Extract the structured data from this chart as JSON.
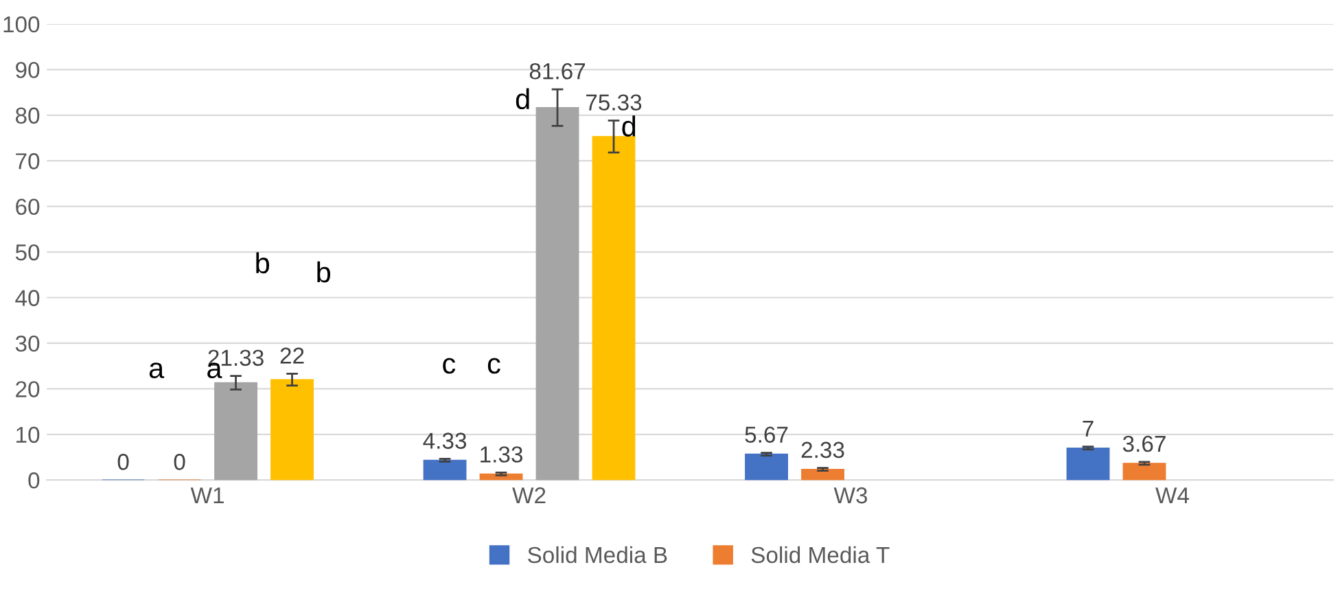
{
  "chart_data": {
    "type": "bar",
    "categories": [
      "W1",
      "W2",
      "W3",
      "W4"
    ],
    "series": [
      {
        "name": "Solid Media B",
        "color": "#4472c4",
        "values": [
          0,
          4.33,
          5.67,
          7
        ],
        "errors": [
          null,
          0.3,
          0.3,
          0.3
        ]
      },
      {
        "name": "Solid Media T",
        "color": "#ed7d31",
        "values": [
          0,
          1.33,
          2.33,
          3.67
        ],
        "errors": [
          null,
          0.3,
          0.3,
          0.3
        ]
      },
      {
        "color": "#a5a5a5",
        "values": [
          21.33,
          81.67,
          null,
          null
        ],
        "errors": [
          1.5,
          4,
          null,
          null
        ]
      },
      {
        "color": "#ffc000",
        "values": [
          22,
          75.33,
          null,
          null
        ],
        "errors": [
          1.3,
          3.5,
          null,
          null
        ]
      }
    ],
    "data_labels": true,
    "ylim": [
      0,
      100
    ],
    "yticks": [
      0,
      10,
      20,
      30,
      40,
      50,
      60,
      70,
      80,
      90,
      100
    ],
    "grid": "y",
    "legend": "bottom",
    "annotations": [
      "a",
      "a",
      "b",
      "b",
      "c",
      "c",
      "d",
      "d"
    ]
  }
}
